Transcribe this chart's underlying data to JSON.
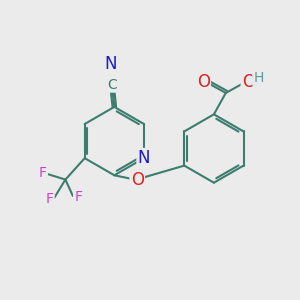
{
  "background_color": "#ebebeb",
  "bond_color": "#3d7d6e",
  "bond_width": 1.5,
  "atom_colors": {
    "N_cyano": "#1a1acc",
    "N_ring": "#1a1acc",
    "O": "#dd2222",
    "H": "#5a9a9a",
    "F": "#cc44cc",
    "C": "#3d7d6e"
  },
  "font_size": 10,
  "fig_size": [
    3.0,
    3.0
  ],
  "dpi": 100
}
